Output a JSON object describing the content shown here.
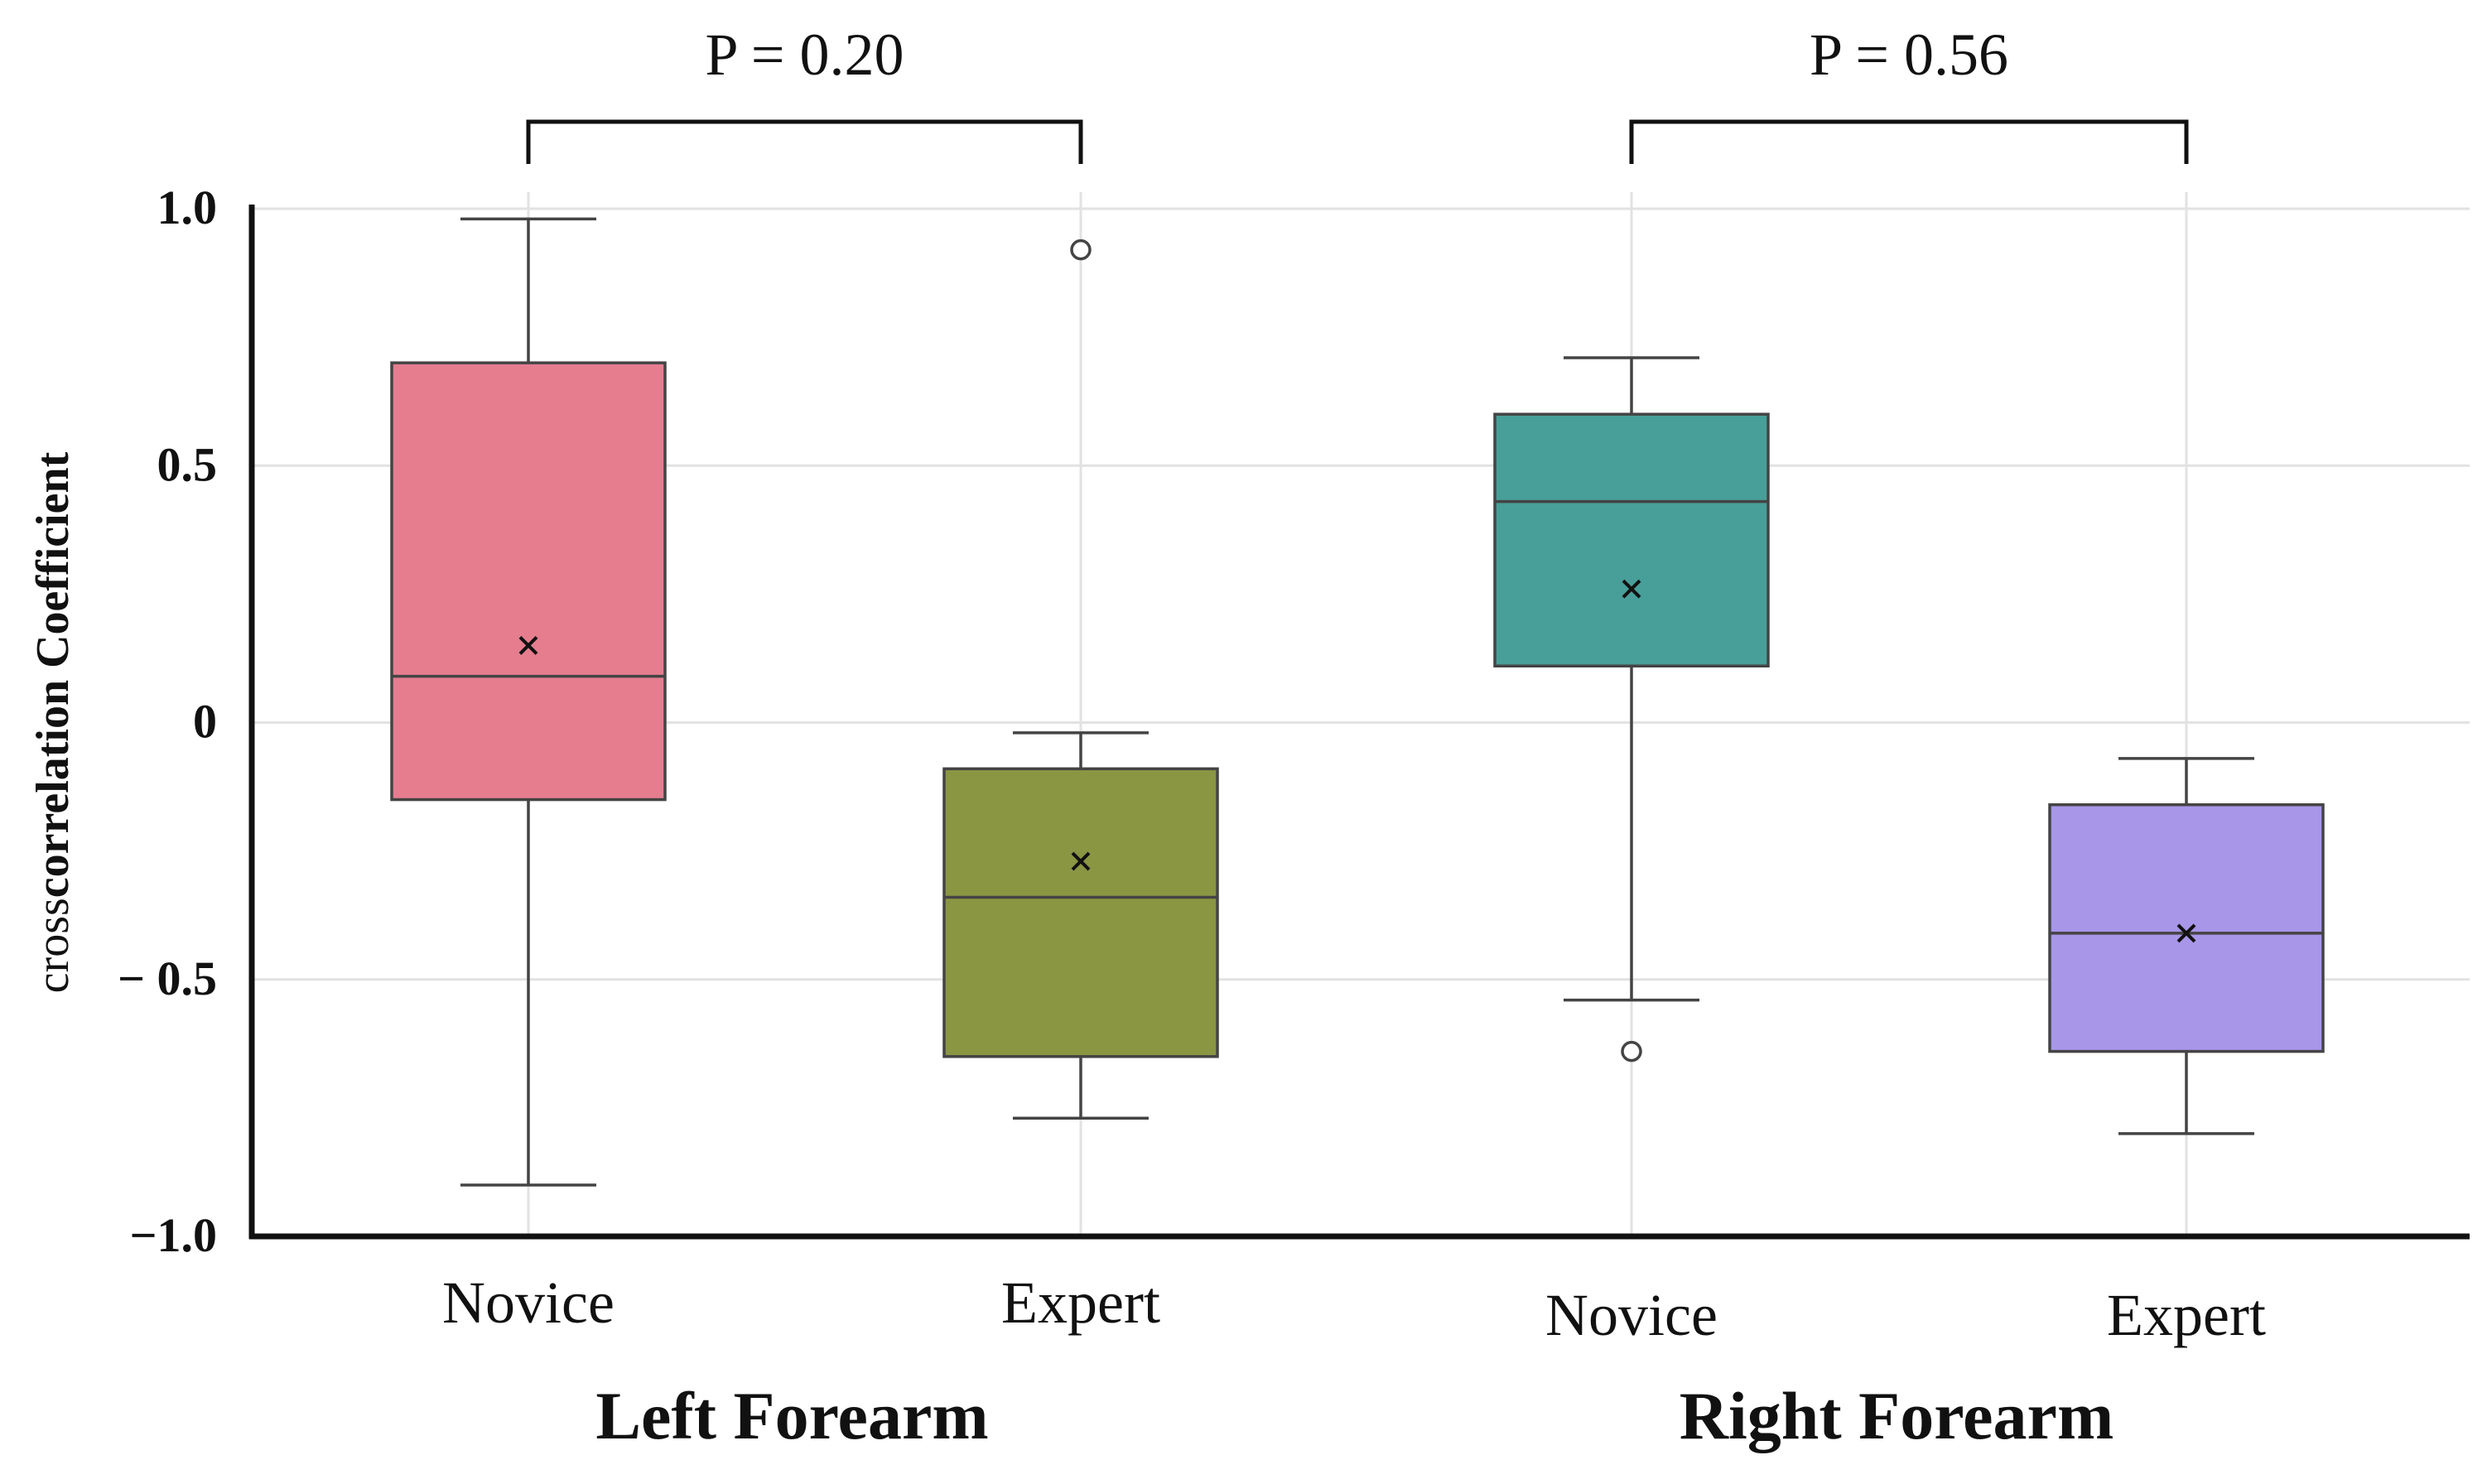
{
  "chart_data": {
    "type": "box",
    "title": "",
    "ylabel": {
      "prefix": "cross",
      "main": "correlation Coefficient"
    },
    "ylim": [
      -1.0,
      1.0
    ],
    "yticks": [
      {
        "value": 1.0,
        "label": "1.0"
      },
      {
        "value": 0.5,
        "label": "0.5"
      },
      {
        "value": 0.0,
        "label": "0"
      },
      {
        "value": -0.5,
        "label": "− 0.5"
      },
      {
        "value": -1.0,
        "label": "−1.0"
      }
    ],
    "grid": true,
    "categories": [
      "Novice",
      "Expert",
      "Novice",
      "Expert"
    ],
    "groups": [
      {
        "label": "Left Forearm",
        "members": [
          0,
          1
        ],
        "comparison": "P = 0.20"
      },
      {
        "label": "Right Forearm",
        "members": [
          2,
          3
        ],
        "comparison": "P = 0.56"
      }
    ],
    "boxes": [
      {
        "group": "Left Forearm",
        "category": "Novice",
        "color": "#e57d8f",
        "whisker_low": -0.9,
        "q1": -0.15,
        "median": 0.09,
        "q3": 0.7,
        "whisker_high": 0.98,
        "mean": 0.15,
        "outliers": []
      },
      {
        "group": "Left Forearm",
        "category": "Expert",
        "color": "#8b9643",
        "whisker_low": -0.77,
        "q1": -0.65,
        "median": -0.34,
        "q3": -0.09,
        "whisker_high": -0.02,
        "mean": -0.27,
        "outliers": [
          0.92
        ]
      },
      {
        "group": "Right Forearm",
        "category": "Novice",
        "color": "#489f99",
        "whisker_low": -0.54,
        "q1": 0.11,
        "median": 0.43,
        "q3": 0.6,
        "whisker_high": 0.71,
        "mean": 0.26,
        "outliers": [
          -0.64
        ]
      },
      {
        "group": "Right Forearm",
        "category": "Expert",
        "color": "#a896e8",
        "whisker_low": -0.8,
        "q1": -0.64,
        "median": -0.41,
        "q3": -0.16,
        "whisker_high": -0.07,
        "mean": -0.41,
        "outliers": []
      }
    ]
  }
}
